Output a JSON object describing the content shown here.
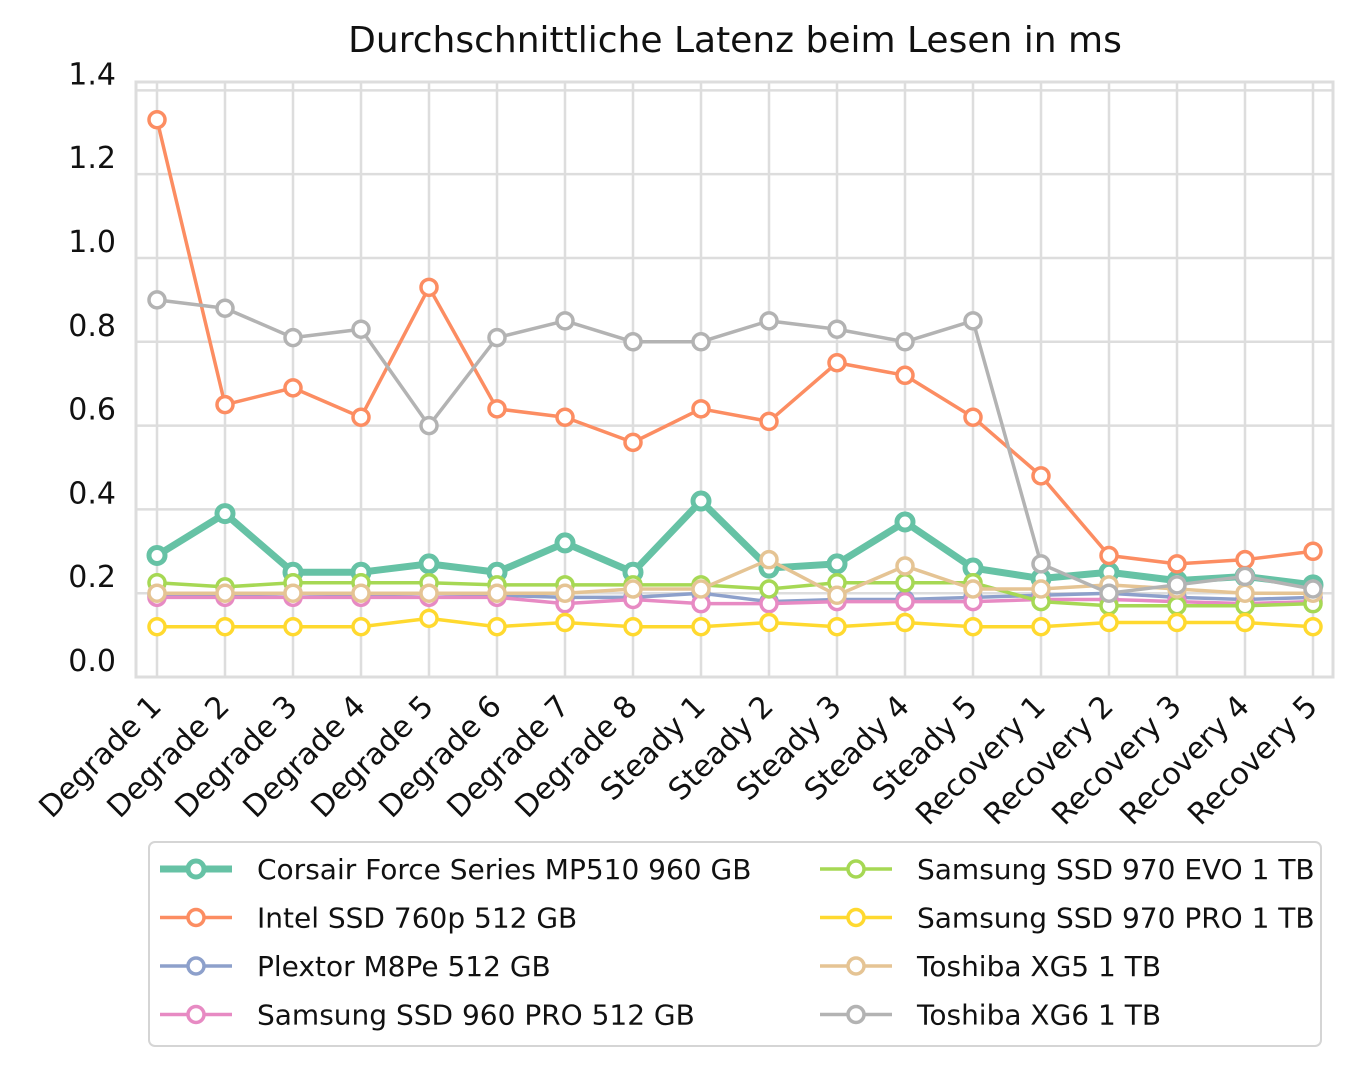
{
  "chart_data": {
    "type": "line",
    "title": "Durchschnittliche Latenz beim Lesen in ms",
    "xlabel": "",
    "ylabel": "",
    "ylim": [
      0.0,
      1.42
    ],
    "yticks": [
      "0.0",
      "0.2",
      "0.4",
      "0.6",
      "0.8",
      "1.0",
      "1.2",
      "1.4"
    ],
    "ytick_values": [
      0.0,
      0.2,
      0.4,
      0.6,
      0.8,
      1.0,
      1.2,
      1.4
    ],
    "grid": true,
    "legend_position": "bottom (below chart, 2 columns)",
    "categories": [
      "Degrade 1",
      "Degrade 2",
      "Degrade 3",
      "Degrade 4",
      "Degrade 5",
      "Degrade 6",
      "Degrade 7",
      "Degrade 8",
      "Steady 1",
      "Steady 2",
      "Steady 3",
      "Steady 4",
      "Steady 5",
      "Recovery 1",
      "Recovery 2",
      "Recovery 3",
      "Recovery 4",
      "Recovery 5"
    ],
    "series": [
      {
        "name": "Corsair Force Series MP510 960 GB",
        "color": "#66c2a5",
        "bold": true,
        "values": [
          0.29,
          0.39,
          0.25,
          0.25,
          0.27,
          0.25,
          0.32,
          0.25,
          0.42,
          0.26,
          0.27,
          0.37,
          0.26,
          0.235,
          0.25,
          0.23,
          0.24,
          0.22
        ]
      },
      {
        "name": "Intel SSD 760p 512 GB",
        "color": "#fc8d62",
        "values": [
          1.33,
          0.65,
          0.69,
          0.62,
          0.93,
          0.64,
          0.62,
          0.56,
          0.64,
          0.61,
          0.75,
          0.72,
          0.62,
          0.48,
          0.29,
          0.27,
          0.28,
          0.3
        ]
      },
      {
        "name": "Plextor M8Pe 512 GB",
        "color": "#8da0cb",
        "values": [
          0.195,
          0.195,
          0.2,
          0.195,
          0.2,
          0.195,
          0.19,
          0.19,
          0.2,
          0.18,
          0.185,
          0.185,
          0.19,
          0.195,
          0.2,
          0.19,
          0.185,
          0.19
        ]
      },
      {
        "name": "Samsung SSD 960 PRO 512 GB",
        "color": "#e78ac3",
        "values": [
          0.19,
          0.19,
          0.19,
          0.19,
          0.19,
          0.19,
          0.175,
          0.185,
          0.175,
          0.175,
          0.18,
          0.18,
          0.18,
          0.185,
          0.185,
          0.18,
          0.175,
          0.18
        ]
      },
      {
        "name": "Samsung SSD 970 EVO 1 TB",
        "color": "#a6d854",
        "values": [
          0.225,
          0.215,
          0.225,
          0.225,
          0.225,
          0.22,
          0.22,
          0.22,
          0.22,
          0.21,
          0.225,
          0.225,
          0.225,
          0.18,
          0.17,
          0.17,
          0.17,
          0.175
        ]
      },
      {
        "name": "Samsung SSD 970 PRO 1 TB",
        "color": "#ffd92f",
        "values": [
          0.12,
          0.12,
          0.12,
          0.12,
          0.14,
          0.12,
          0.13,
          0.12,
          0.12,
          0.13,
          0.12,
          0.13,
          0.12,
          0.12,
          0.13,
          0.13,
          0.13,
          0.12
        ]
      },
      {
        "name": "Toshiba XG5 1 TB",
        "color": "#e5c494",
        "values": [
          0.2,
          0.2,
          0.2,
          0.2,
          0.2,
          0.2,
          0.2,
          0.21,
          0.21,
          0.28,
          0.195,
          0.265,
          0.21,
          0.21,
          0.22,
          0.21,
          0.2,
          0.2
        ]
      },
      {
        "name": "Toshiba XG6 1 TB",
        "color": "#b3b3b3",
        "values": [
          0.9,
          0.88,
          0.81,
          0.83,
          0.6,
          0.81,
          0.85,
          0.8,
          0.8,
          0.85,
          0.83,
          0.8,
          0.85,
          0.27,
          0.2,
          0.22,
          0.24,
          0.21
        ]
      }
    ]
  }
}
